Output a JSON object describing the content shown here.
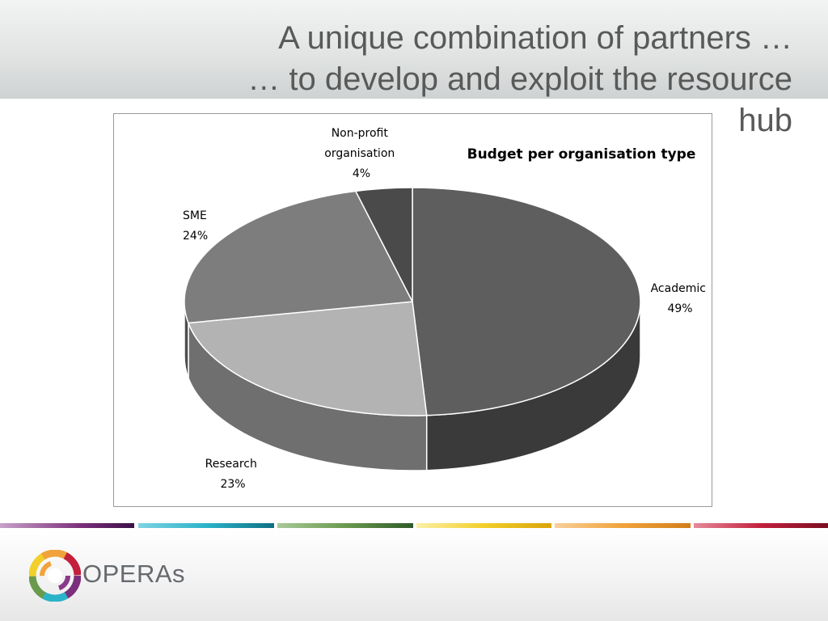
{
  "slide": {
    "title_lines": [
      "A unique combination of partners …",
      "… to develop and exploit the resource",
      "hub"
    ],
    "logo_text": "OPERAs"
  },
  "chart_data": {
    "type": "pie",
    "title": "Budget per organisation type",
    "three_d": true,
    "legend": "none",
    "slices": [
      {
        "label": "Academic",
        "value": 49,
        "display": "49%",
        "color": "#5e5e5e"
      },
      {
        "label": "Research",
        "value": 23,
        "display": "23%",
        "color": "#b3b3b3"
      },
      {
        "label": "SME",
        "value": 24,
        "display": "24%",
        "color": "#7d7d7d"
      },
      {
        "label": "Non-profit organisation",
        "label_lines": [
          "Non-profit",
          "organisation"
        ],
        "value": 4,
        "display": "4%",
        "color": "#4a4a4a"
      }
    ]
  },
  "colors": {
    "title_text": "#595959",
    "stripe_segments": [
      "#7b2f7a",
      "#2ab3c9",
      "#6a9a4e",
      "#f2cf2a",
      "#f0a33a",
      "#c2203c"
    ]
  }
}
